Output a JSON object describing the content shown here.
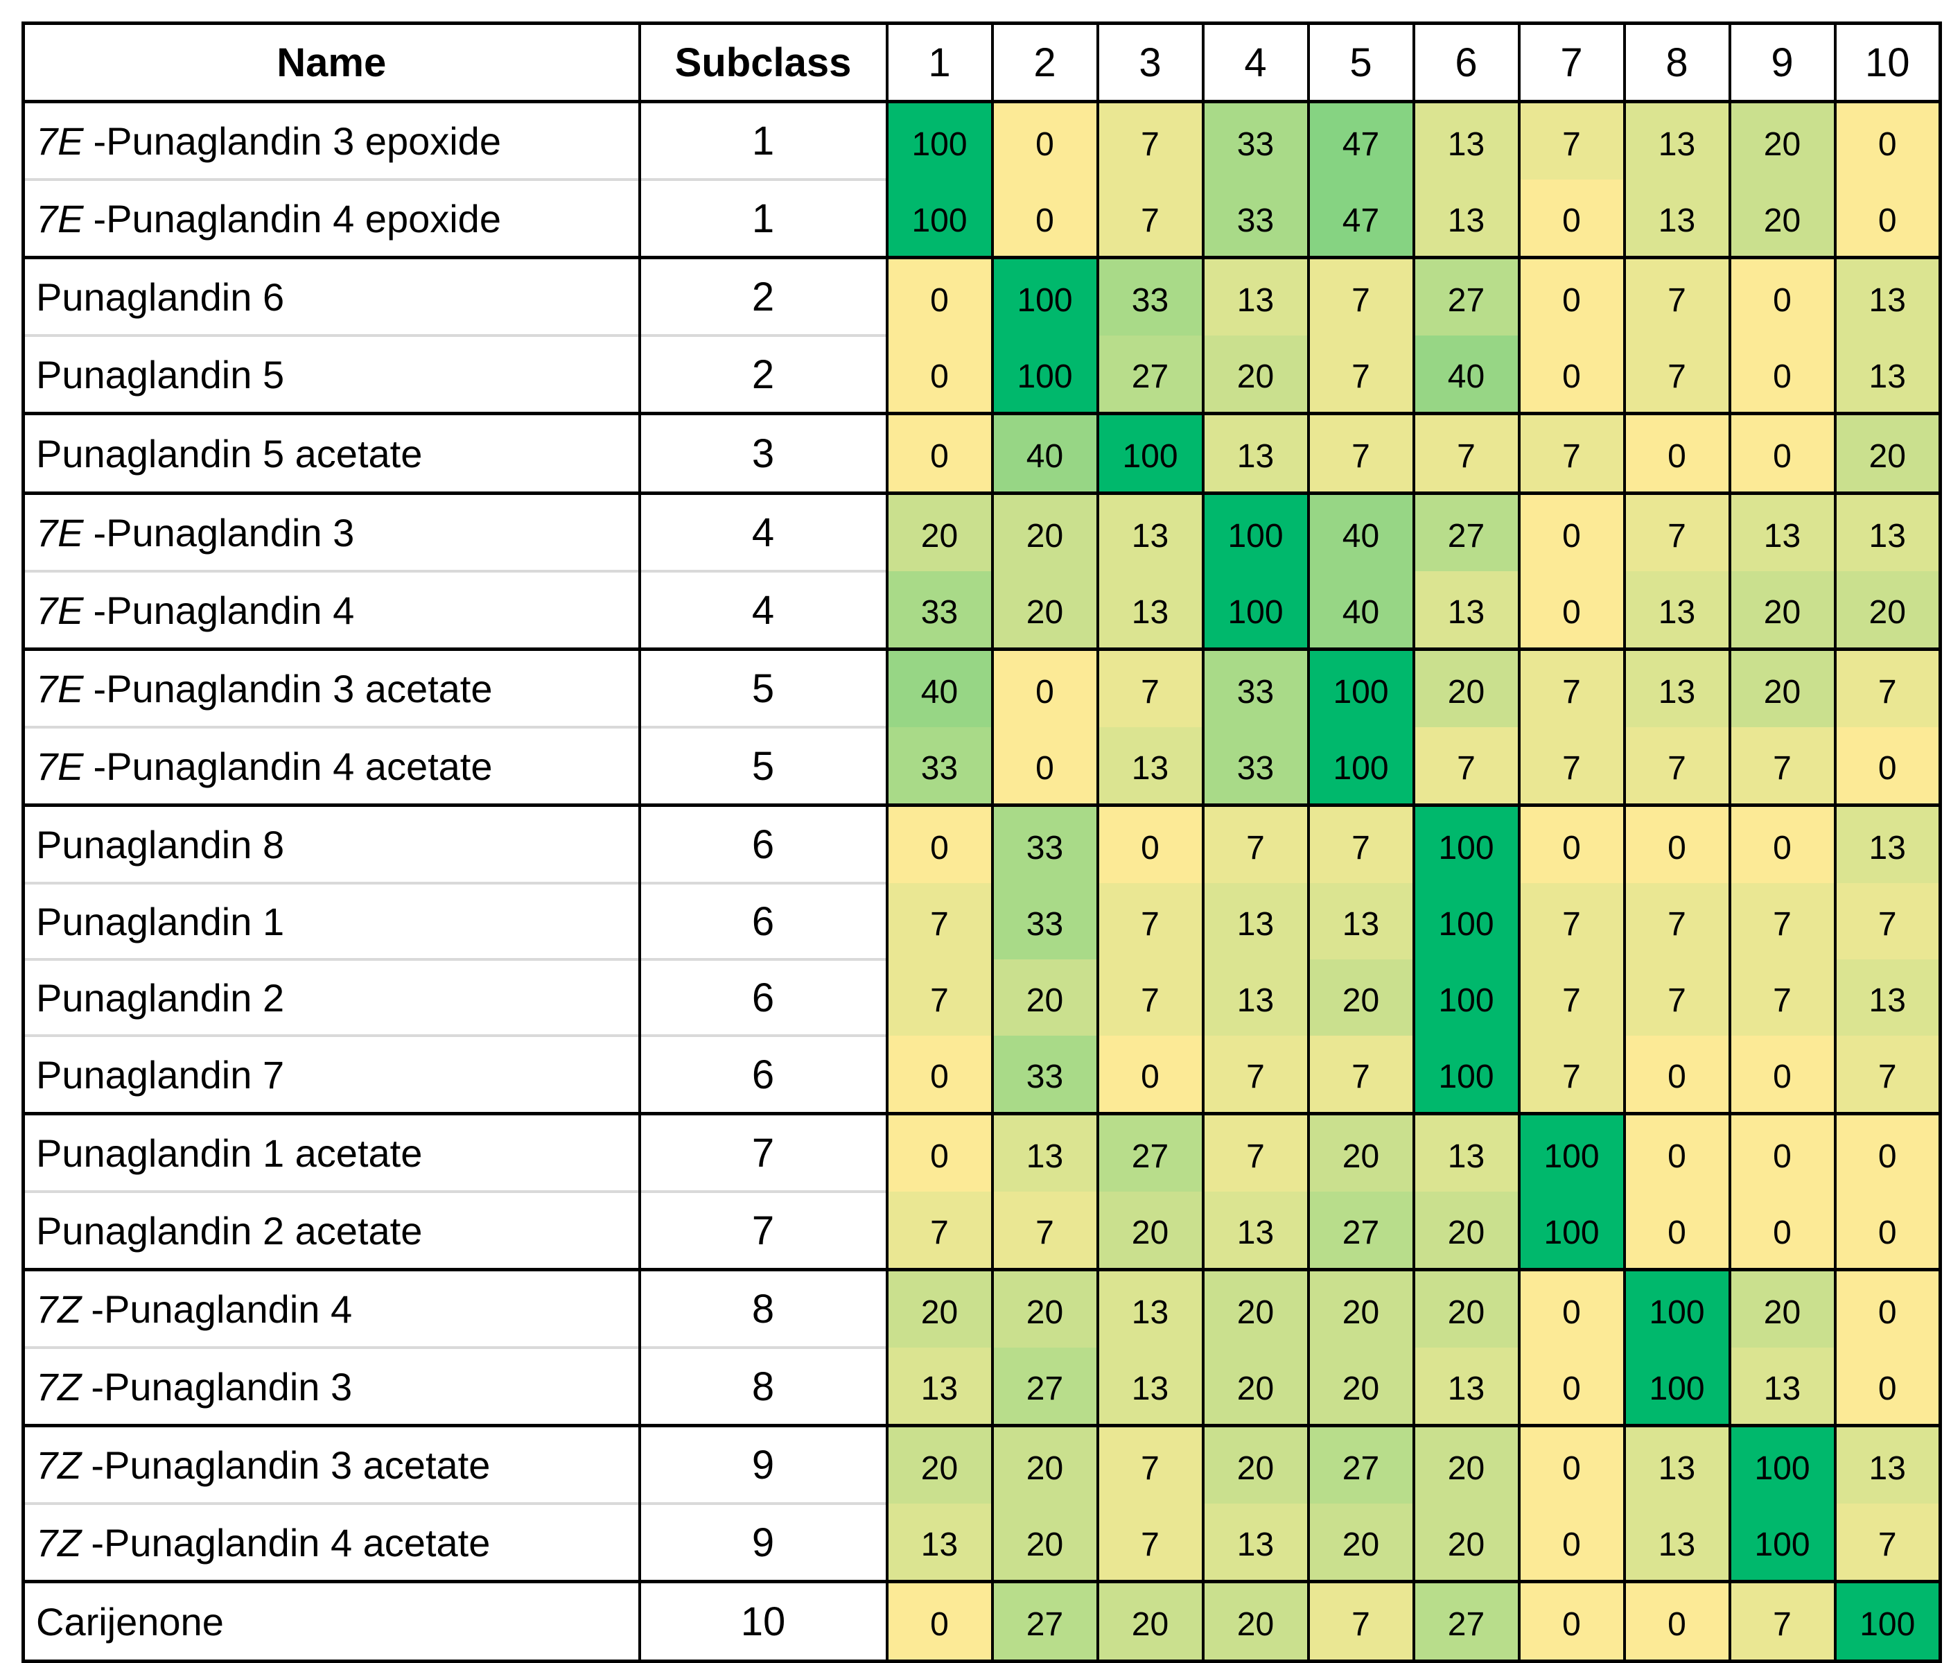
{
  "table": {
    "header": [
      "Name",
      "Subclass",
      "1",
      "2",
      "3",
      "4",
      "5",
      "6",
      "7",
      "8",
      "9",
      "10"
    ],
    "rows": [
      {
        "prefix": "7E",
        "name": "-Punaglandin 3 epoxide",
        "subclass": 1,
        "values": [
          100,
          0,
          7,
          33,
          47,
          13,
          7,
          13,
          20,
          0
        ]
      },
      {
        "prefix": "7E",
        "name": "-Punaglandin 4 epoxide",
        "subclass": 1,
        "values": [
          100,
          0,
          7,
          33,
          47,
          13,
          0,
          13,
          20,
          0
        ]
      },
      {
        "name": "Punaglandin 6",
        "subclass": 2,
        "values": [
          0,
          100,
          33,
          13,
          7,
          27,
          0,
          7,
          0,
          13
        ]
      },
      {
        "name": "Punaglandin 5",
        "subclass": 2,
        "values": [
          0,
          100,
          27,
          20,
          7,
          40,
          0,
          7,
          0,
          13
        ]
      },
      {
        "name": "Punaglandin 5 acetate",
        "subclass": 3,
        "values": [
          0,
          40,
          100,
          13,
          7,
          7,
          7,
          0,
          0,
          20
        ]
      },
      {
        "prefix": "7E",
        "name": "-Punaglandin 3",
        "subclass": 4,
        "values": [
          20,
          20,
          13,
          100,
          40,
          27,
          0,
          7,
          13,
          13
        ]
      },
      {
        "prefix": "7E",
        "name": "-Punaglandin 4",
        "subclass": 4,
        "values": [
          33,
          20,
          13,
          100,
          40,
          13,
          0,
          13,
          20,
          20
        ]
      },
      {
        "prefix": "7E",
        "name": "-Punaglandin 3 acetate",
        "subclass": 5,
        "values": [
          40,
          0,
          7,
          33,
          100,
          20,
          7,
          13,
          20,
          7
        ]
      },
      {
        "prefix": "7E",
        "name": "-Punaglandin 4 acetate",
        "subclass": 5,
        "values": [
          33,
          0,
          13,
          33,
          100,
          7,
          7,
          7,
          7,
          0
        ]
      },
      {
        "name": "Punaglandin 8",
        "subclass": 6,
        "values": [
          0,
          33,
          0,
          7,
          7,
          100,
          0,
          0,
          0,
          13
        ]
      },
      {
        "name": "Punaglandin 1",
        "subclass": 6,
        "values": [
          7,
          33,
          7,
          13,
          13,
          100,
          7,
          7,
          7,
          7
        ]
      },
      {
        "name": "Punaglandin 2",
        "subclass": 6,
        "values": [
          7,
          20,
          7,
          13,
          20,
          100,
          7,
          7,
          7,
          13
        ]
      },
      {
        "name": "Punaglandin 7",
        "subclass": 6,
        "values": [
          0,
          33,
          0,
          7,
          7,
          100,
          7,
          0,
          0,
          7
        ]
      },
      {
        "name": "Punaglandin 1 acetate",
        "subclass": 7,
        "values": [
          0,
          13,
          27,
          7,
          20,
          13,
          100,
          0,
          0,
          0
        ]
      },
      {
        "name": "Punaglandin 2 acetate",
        "subclass": 7,
        "values": [
          7,
          7,
          20,
          13,
          27,
          20,
          100,
          0,
          0,
          0
        ]
      },
      {
        "prefix": "7Z",
        "name": "-Punaglandin 4",
        "subclass": 8,
        "values": [
          20,
          20,
          13,
          20,
          20,
          20,
          0,
          100,
          20,
          0
        ]
      },
      {
        "prefix": "7Z",
        "name": "-Punaglandin 3",
        "subclass": 8,
        "values": [
          13,
          27,
          13,
          20,
          20,
          13,
          0,
          100,
          13,
          0
        ]
      },
      {
        "prefix": "7Z",
        "name": "-Punaglandin 3 acetate",
        "subclass": 9,
        "values": [
          20,
          20,
          7,
          20,
          27,
          20,
          0,
          13,
          100,
          13
        ]
      },
      {
        "prefix": "7Z",
        "name": "-Punaglandin 4 acetate",
        "subclass": 9,
        "values": [
          13,
          20,
          7,
          13,
          20,
          20,
          0,
          13,
          100,
          7
        ]
      },
      {
        "name": "Carijenone",
        "subclass": 10,
        "values": [
          0,
          27,
          20,
          20,
          7,
          27,
          0,
          0,
          7,
          100
        ]
      }
    ]
  }
}
